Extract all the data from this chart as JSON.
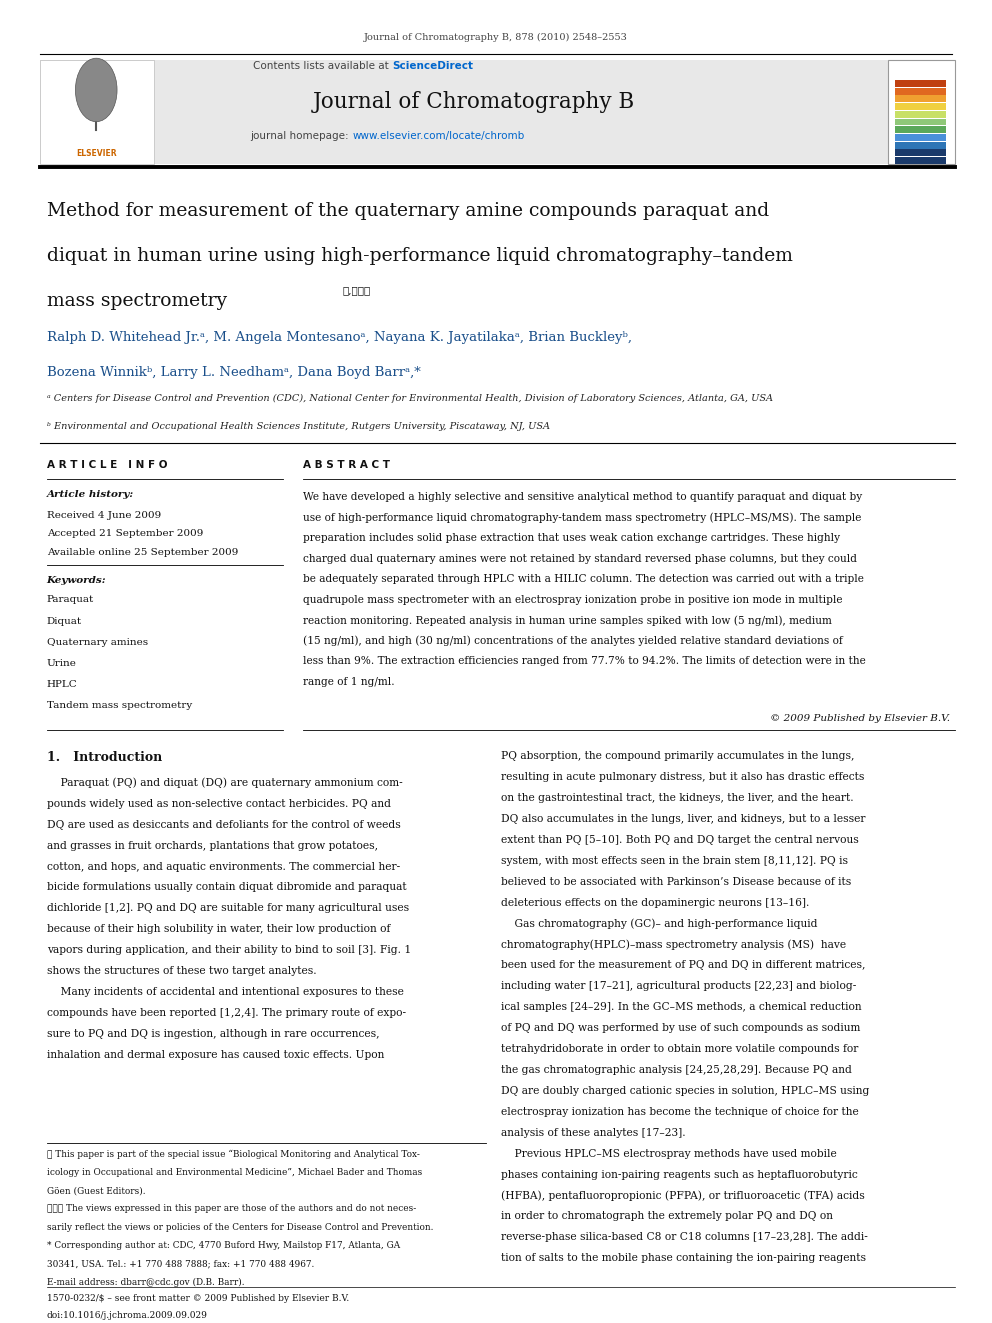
{
  "page_width": 9.92,
  "page_height": 13.23,
  "bg_color": "#ffffff",
  "top_journal_ref": "Journal of Chromatography B, 878 (2010) 2548–2553",
  "header_bg": "#e8e8e8",
  "contents_text": "Contents lists available at ",
  "sciencedirect_text": "ScienceDirect",
  "sciencedirect_color": "#0066cc",
  "journal_title": "Journal of Chromatography B",
  "journal_homepage_text": "journal homepage: ",
  "journal_url": "www.elsevier.com/locate/chromb",
  "journal_url_color": "#0066cc",
  "paper_title_line1": "Method for measurement of the quaternary amine compounds paraquat and",
  "paper_title_line2": "diquat in human urine using high-performance liquid chromatography–tandem",
  "paper_title_line3": "mass spectrometry",
  "title_footnote": "★,★★★",
  "authors_line1": "Ralph D. Whitehead Jr.ᵃ, M. Angela Montesanoᵃ, Nayana K. Jayatilakaᵃ, Brian Buckleyᵇ,",
  "authors_line2": "Bozena Winnikᵇ, Larry L. Needhamᵃ, Dana Boyd Barrᵃ,*",
  "affil_a": "ᵃ Centers for Disease Control and Prevention (CDC), National Center for Environmental Health, Division of Laboratory Sciences, Atlanta, GA, USA",
  "affil_b": "ᵇ Environmental and Occupational Health Sciences Institute, Rutgers University, Piscataway, NJ, USA",
  "article_info_title": "A R T I C L E   I N F O",
  "abstract_title": "A B S T R A C T",
  "article_history_label": "Article history:",
  "received": "Received 4 June 2009",
  "accepted": "Accepted 21 September 2009",
  "available": "Available online 25 September 2009",
  "keywords_label": "Keywords:",
  "keywords": [
    "Paraquat",
    "Diquat",
    "Quaternary amines",
    "Urine",
    "HPLC",
    "Tandem mass spectrometry"
  ],
  "abstract_lines": [
    "We have developed a highly selective and sensitive analytical method to quantify paraquat and diquat by",
    "use of high-performance liquid chromatography-tandem mass spectrometry (HPLC–MS/MS). The sample",
    "preparation includes solid phase extraction that uses weak cation exchange cartridges. These highly",
    "charged dual quaternary amines were not retained by standard reversed phase columns, but they could",
    "be adequately separated through HPLC with a HILIC column. The detection was carried out with a triple",
    "quadrupole mass spectrometer with an electrospray ionization probe in positive ion mode in multiple",
    "reaction monitoring. Repeated analysis in human urine samples spiked with low (5 ng/ml), medium",
    "(15 ng/ml), and high (30 ng/ml) concentrations of the analytes yielded relative standard deviations of",
    "less than 9%. The extraction efficiencies ranged from 77.7% to 94.2%. The limits of detection were in the",
    "range of 1 ng/ml."
  ],
  "copyright": "© 2009 Published by Elsevier B.V.",
  "section1_title": "1.   Introduction",
  "intro_col1_lines": [
    "    Paraquat (PQ) and diquat (DQ) are quaternary ammonium com-",
    "pounds widely used as non-selective contact herbicides. PQ and",
    "DQ are used as desiccants and defoliants for the control of weeds",
    "and grasses in fruit orchards, plantations that grow potatoes,",
    "cotton, and hops, and aquatic environments. The commercial her-",
    "bicide formulations usually contain diquat dibromide and paraquat",
    "dichloride [1,2]. PQ and DQ are suitable for many agricultural uses",
    "because of their high solubility in water, their low production of",
    "vapors during application, and their ability to bind to soil [3]. Fig. 1",
    "shows the structures of these two target analytes.",
    "    Many incidents of accidental and intentional exposures to these",
    "compounds have been reported [1,2,4]. The primary route of expo-",
    "sure to PQ and DQ is ingestion, although in rare occurrences,",
    "inhalation and dermal exposure has caused toxic effects. Upon"
  ],
  "intro_col2_lines": [
    "PQ absorption, the compound primarily accumulates in the lungs,",
    "resulting in acute pulmonary distress, but it also has drastic effects",
    "on the gastrointestinal tract, the kidneys, the liver, and the heart.",
    "DQ also accumulates in the lungs, liver, and kidneys, but to a lesser",
    "extent than PQ [5–10]. Both PQ and DQ target the central nervous",
    "system, with most effects seen in the brain stem [8,11,12]. PQ is",
    "believed to be associated with Parkinson’s Disease because of its",
    "deleterious effects on the dopaminergic neurons [13–16].",
    "    Gas chromatography (GC)– and high-performance liquid",
    "chromatography(HPLC)–mass spectrometry analysis (MS)  have",
    "been used for the measurement of PQ and DQ in different matrices,",
    "including water [17–21], agricultural products [22,23] and biolog-",
    "ical samples [24–29]. In the GC–MS methods, a chemical reduction",
    "of PQ and DQ was performed by use of such compounds as sodium",
    "tetrahydridoborate in order to obtain more volatile compounds for",
    "the gas chromatographic analysis [24,25,28,29]. Because PQ and",
    "DQ are doubly charged cationic species in solution, HPLC–MS using",
    "electrospray ionization has become the technique of choice for the",
    "analysis of these analytes [17–23].",
    "    Previous HPLC–MS electrospray methods have used mobile",
    "phases containing ion-pairing reagents such as heptafluorobutyric",
    "(HFBA), pentafluoropropionic (PFPA), or trifluoroacetic (TFA) acids",
    "in order to chromatograph the extremely polar PQ and DQ on",
    "reverse-phase silica-based C8 or C18 columns [17–23,28]. The addi-",
    "tion of salts to the mobile phase containing the ion-pairing reagents"
  ],
  "footnote1": "★ This paper is part of the special issue “Biological Monitoring and Analytical Tox-",
  "footnote1b": "icology in Occupational and Environmental Medicine”, Michael Bader and Thomas",
  "footnote1c": "Göen (Guest Editors).",
  "footnote2": "★★★ The views expressed in this paper are those of the authors and do not neces-",
  "footnote2b": "sarily reflect the views or policies of the Centers for Disease Control and Prevention.",
  "footnote3": "* Corresponding author at: CDC, 4770 Buford Hwy, Mailstop F17, Atlanta, GA",
  "footnote3b": "30341, USA. Tel.: +1 770 488 7888; fax: +1 770 488 4967.",
  "footnote4": "E-mail address: dbarr@cdc.gov (D.B. Barr).",
  "issn_line": "1570-0232/$ – see front matter © 2009 Published by Elsevier B.V.",
  "doi_line": "doi:10.1016/j.jchroma.2009.09.029",
  "accent_color": "#cc6600",
  "blue_color": "#1a4f8a",
  "link_color": "#0066cc"
}
